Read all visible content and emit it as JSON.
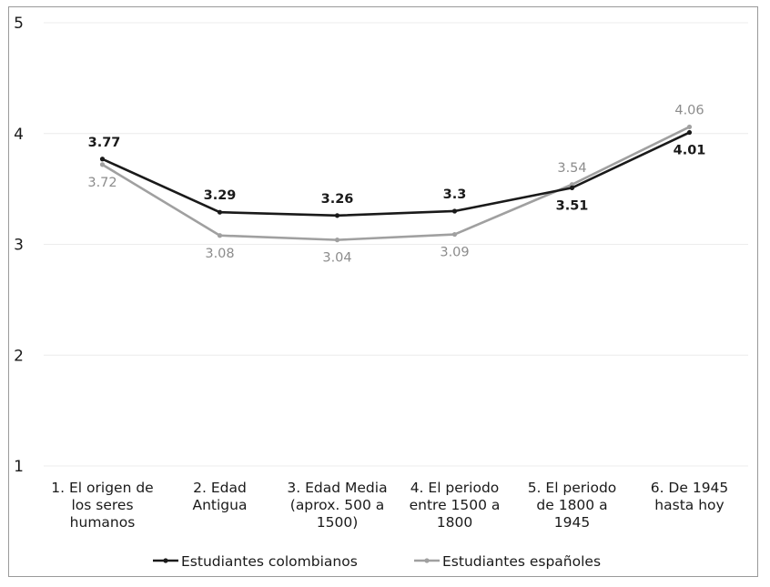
{
  "chart_data": {
    "type": "line",
    "categories": [
      [
        "1. El origen de",
        "los seres",
        "humanos"
      ],
      [
        "2. Edad",
        "Antigua"
      ],
      [
        "3. Edad Media",
        "(aprox. 500 a",
        "1500)"
      ],
      [
        "4. El periodo",
        "entre 1500 a",
        "1800"
      ],
      [
        "5. El periodo",
        "de 1800 a",
        "1945"
      ],
      [
        "6. De 1945",
        "hasta hoy"
      ]
    ],
    "series": [
      {
        "name": "Estudiantes colombianos",
        "values": [
          3.77,
          3.29,
          3.26,
          3.3,
          3.51,
          4.01
        ],
        "labels": [
          "3.77",
          "3.29",
          "3.26",
          "3.3",
          "3.51",
          "4.01"
        ],
        "color": "#1a1a1a"
      },
      {
        "name": "Estudiantes españoles",
        "values": [
          3.72,
          3.08,
          3.04,
          3.09,
          3.54,
          4.06
        ],
        "labels": [
          "3.72",
          "3.08",
          "3.04",
          "3.09",
          "3.54",
          "4.06"
        ],
        "color": "#a0a0a0"
      }
    ],
    "yticks": [
      "1",
      "2",
      "3",
      "4",
      "5"
    ],
    "ylim": [
      1,
      5
    ],
    "grid": true,
    "legend": "bottom",
    "title": "",
    "xlabel": "",
    "ylabel": ""
  }
}
